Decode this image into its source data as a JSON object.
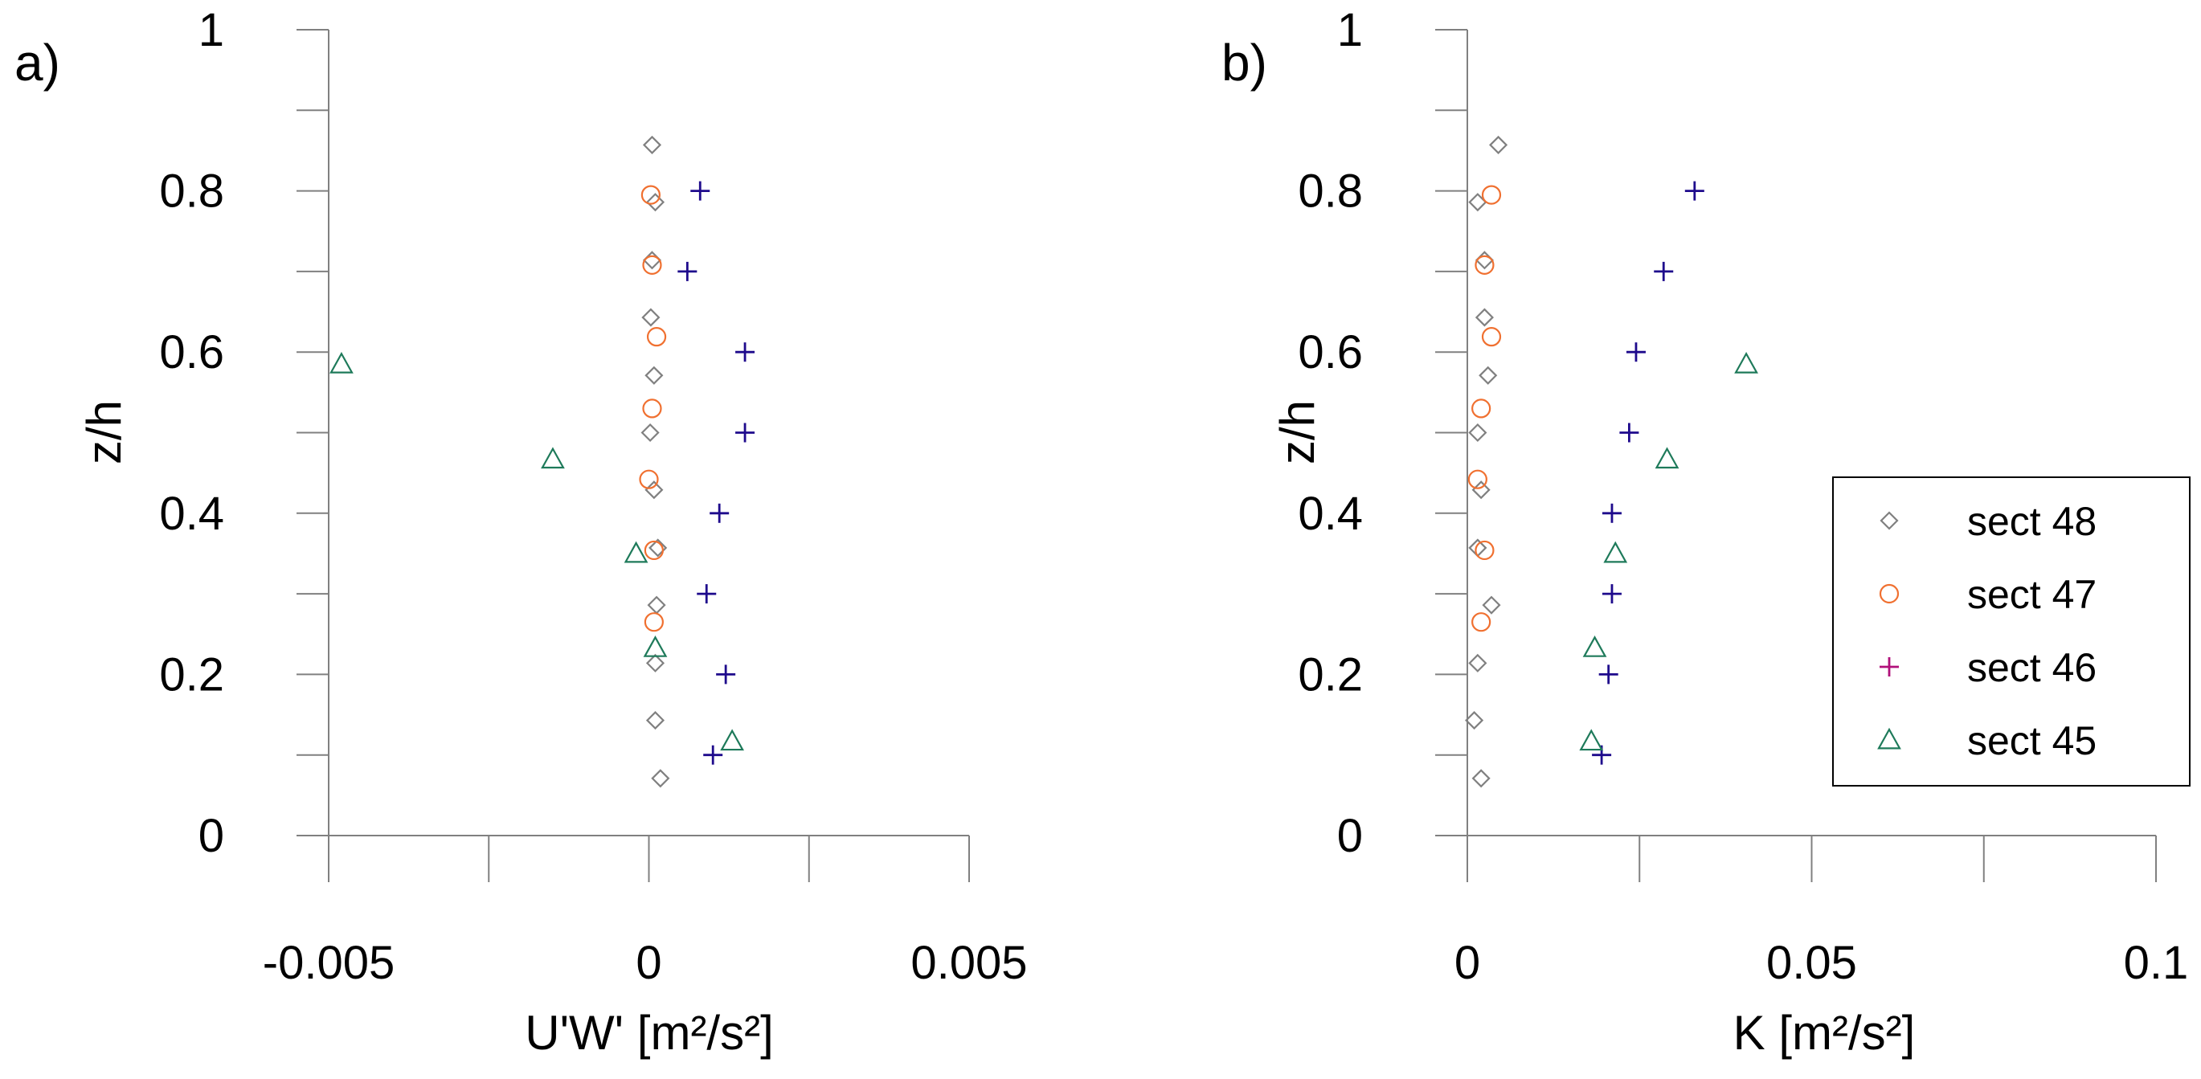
{
  "colors": {
    "sect48": "#808080",
    "sect47": "#F07030",
    "sect46": "#1E0A8C",
    "sect46_legend": "#B0107A",
    "sect45": "#1E7A5A"
  },
  "chart_data": [
    {
      "type": "scatter",
      "panel_label": "a)",
      "xlabel": "U'W' [m²/s²]",
      "ylabel": "z/h",
      "xlim": [
        -0.005,
        0.005
      ],
      "ylim": [
        0,
        1
      ],
      "xticks": [
        -0.005,
        0,
        0.005
      ],
      "xtick_labels": [
        "-0.005",
        "0",
        "0.005"
      ],
      "yticks": [
        0,
        0.2,
        0.4,
        0.6,
        0.8,
        1
      ],
      "ytick_labels": [
        "0",
        "0.2",
        "0.4",
        "0.6",
        "0.8",
        "1"
      ],
      "series": [
        {
          "name": "sect 48",
          "marker": "diamond",
          "points": [
            [
              5e-05,
              0.857
            ],
            [
              0.0001,
              0.786
            ],
            [
              5e-05,
              0.714
            ],
            [
              3e-05,
              0.643
            ],
            [
              8e-05,
              0.571
            ],
            [
              2e-05,
              0.5
            ],
            [
              8e-05,
              0.429
            ],
            [
              0.00014,
              0.357
            ],
            [
              0.00012,
              0.286
            ],
            [
              0.0001,
              0.214
            ],
            [
              0.0001,
              0.143
            ],
            [
              0.00018,
              0.071
            ]
          ]
        },
        {
          "name": "sect 47",
          "marker": "circle",
          "points": [
            [
              3e-05,
              0.795
            ],
            [
              5e-05,
              0.708
            ],
            [
              0.00012,
              0.619
            ],
            [
              5e-05,
              0.53
            ],
            [
              0.0,
              0.442
            ],
            [
              8e-05,
              0.354
            ],
            [
              8e-05,
              0.265
            ]
          ]
        },
        {
          "name": "sect 46",
          "marker": "plus",
          "points": [
            [
              0.0008,
              0.8
            ],
            [
              0.0006,
              0.7
            ],
            [
              0.0015,
              0.6
            ],
            [
              0.0015,
              0.5
            ],
            [
              0.0011,
              0.4
            ],
            [
              0.0009,
              0.3
            ],
            [
              0.0012,
              0.2
            ],
            [
              0.001,
              0.1
            ]
          ]
        },
        {
          "name": "sect 45",
          "marker": "triangle",
          "points": [
            [
              -0.0048,
              0.585
            ],
            [
              -0.0015,
              0.467
            ],
            [
              -0.0002,
              0.35
            ],
            [
              0.0001,
              0.233
            ],
            [
              0.0013,
              0.117
            ]
          ]
        }
      ]
    },
    {
      "type": "scatter",
      "panel_label": "b)",
      "xlabel": "K [m²/s²]",
      "ylabel": "z/h",
      "xlim": [
        0,
        0.1
      ],
      "ylim": [
        0,
        1
      ],
      "xticks": [
        0,
        0.05,
        0.1
      ],
      "xtick_labels": [
        "0",
        "0.05",
        "0.1"
      ],
      "yticks": [
        0,
        0.2,
        0.4,
        0.6,
        0.8,
        1
      ],
      "ytick_labels": [
        "0",
        "0.2",
        "0.4",
        "0.6",
        "0.8",
        "1"
      ],
      "legend": {
        "position": "right",
        "entries": [
          "sect 48",
          "sect 47",
          "sect 46",
          "sect 45"
        ]
      },
      "series": [
        {
          "name": "sect 48",
          "marker": "diamond",
          "points": [
            [
              0.0045,
              0.857
            ],
            [
              0.0015,
              0.786
            ],
            [
              0.0025,
              0.714
            ],
            [
              0.0025,
              0.643
            ],
            [
              0.003,
              0.571
            ],
            [
              0.0015,
              0.5
            ],
            [
              0.002,
              0.429
            ],
            [
              0.0015,
              0.357
            ],
            [
              0.0035,
              0.286
            ],
            [
              0.0015,
              0.214
            ],
            [
              0.001,
              0.143
            ],
            [
              0.002,
              0.071
            ]
          ]
        },
        {
          "name": "sect 47",
          "marker": "circle",
          "points": [
            [
              0.0035,
              0.795
            ],
            [
              0.0025,
              0.708
            ],
            [
              0.0035,
              0.619
            ],
            [
              0.002,
              0.53
            ],
            [
              0.0015,
              0.442
            ],
            [
              0.0025,
              0.354
            ],
            [
              0.002,
              0.265
            ]
          ]
        },
        {
          "name": "sect 46",
          "marker": "plus",
          "points": [
            [
              0.033,
              0.8
            ],
            [
              0.0285,
              0.7
            ],
            [
              0.0245,
              0.6
            ],
            [
              0.0235,
              0.5
            ],
            [
              0.021,
              0.4
            ],
            [
              0.021,
              0.3
            ],
            [
              0.0205,
              0.2
            ],
            [
              0.0195,
              0.1
            ]
          ]
        },
        {
          "name": "sect 45",
          "marker": "triangle",
          "points": [
            [
              0.0405,
              0.585
            ],
            [
              0.029,
              0.467
            ],
            [
              0.0215,
              0.35
            ],
            [
              0.0185,
              0.233
            ],
            [
              0.018,
              0.117
            ]
          ]
        }
      ]
    }
  ]
}
